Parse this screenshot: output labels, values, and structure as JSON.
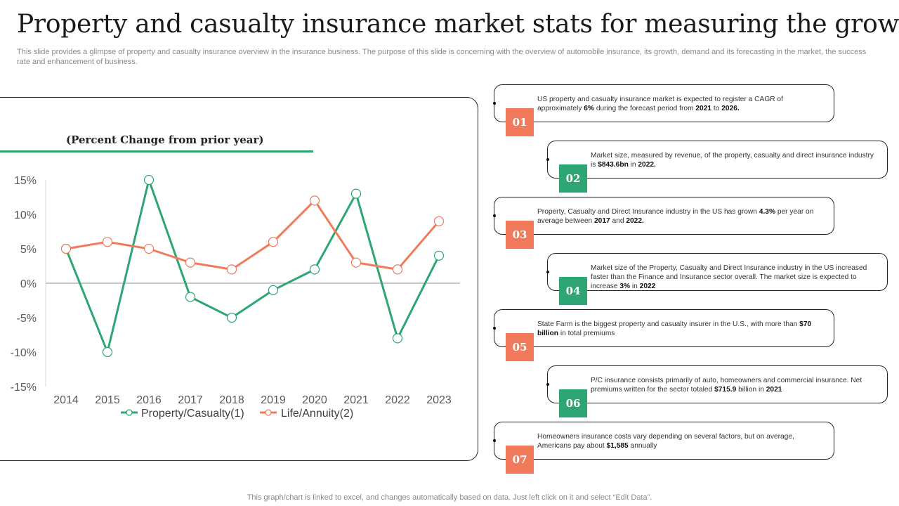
{
  "header": {
    "title": "Property and casualty insurance market stats for measuring the growth",
    "subtitle": "This slide provides a glimpse of property and casualty insurance overview in the insurance business. The purpose of this slide is concerning with the overview of automobile insurance, its growth, demand and its forecasting in the market, the success rate and enhancement of business."
  },
  "chart_data": {
    "type": "line",
    "title": "(Percent Change from prior year)",
    "categories": [
      "2014",
      "2015",
      "2016",
      "2017",
      "2018",
      "2019",
      "2020",
      "2021",
      "2022",
      "2023"
    ],
    "series": [
      {
        "name": "Property/Casualty(1)",
        "color": "#2ea673",
        "values": [
          5,
          -10,
          15,
          -2,
          -5,
          -1,
          2,
          13,
          -8,
          4
        ]
      },
      {
        "name": "Life/Annuity(2)",
        "color": "#f07a5a",
        "values": [
          5,
          6,
          5,
          3,
          2,
          6,
          12,
          3,
          2,
          9
        ]
      }
    ],
    "ylim": [
      -15,
      15
    ],
    "yticks": [
      "15%",
      "10%",
      "5%",
      "0%",
      "-5%",
      "-10%",
      "-15%"
    ],
    "ytick_values": [
      15,
      10,
      5,
      0,
      -5,
      -10,
      -15
    ],
    "xlabel": "",
    "ylabel": "",
    "legend_position": "bottom"
  },
  "stats": [
    {
      "number": "01",
      "color": "orange",
      "segments": [
        [
          "US property and casualty insurance market is expected to register a CAGR of approximately ",
          false
        ],
        [
          "6%",
          true
        ],
        [
          " during the forecast period from ",
          false
        ],
        [
          "2021",
          true
        ],
        [
          " to ",
          false
        ],
        [
          "2026.",
          true
        ]
      ]
    },
    {
      "number": "02",
      "color": "green",
      "segments": [
        [
          "Market size, measured by revenue, of the property, casualty and direct insurance industry is ",
          false
        ],
        [
          "$843.6bn",
          true
        ],
        [
          " in ",
          false
        ],
        [
          "2022.",
          true
        ]
      ]
    },
    {
      "number": "03",
      "color": "orange",
      "segments": [
        [
          "Property, Casualty and Direct Insurance industry in the US has grown ",
          false
        ],
        [
          "4.3%",
          true
        ],
        [
          " per year on average between ",
          false
        ],
        [
          "2017",
          true
        ],
        [
          " and ",
          false
        ],
        [
          "2022.",
          true
        ]
      ]
    },
    {
      "number": "04",
      "color": "green",
      "segments": [
        [
          "Market size of the Property, Casualty and Direct Insurance industry in the US increased faster than the Finance and Insurance sector overall. The market size is expected to increase ",
          false
        ],
        [
          "3%",
          true
        ],
        [
          " in ",
          false
        ],
        [
          "2022",
          true
        ]
      ]
    },
    {
      "number": "05",
      "color": "orange",
      "segments": [
        [
          "State Farm is the biggest property and casualty insurer in the U.S., with more than ",
          false
        ],
        [
          "$70 billion",
          true
        ],
        [
          " in total premiums",
          false
        ]
      ]
    },
    {
      "number": "06",
      "color": "green",
      "segments": [
        [
          "P/C insurance consists primarily of auto, homeowners and commercial insurance. Net premiums written for the sector totaled ",
          false
        ],
        [
          "$715.9",
          true
        ],
        [
          " billion in ",
          false
        ],
        [
          "2021",
          true
        ]
      ]
    },
    {
      "number": "07",
      "color": "orange",
      "segments": [
        [
          "Homeowners insurance costs vary depending on several factors, but on average, Americans pay about ",
          false
        ],
        [
          "$1,585",
          true
        ],
        [
          " annually",
          false
        ]
      ]
    }
  ],
  "footer": {
    "note": "This graph/chart is linked to excel, and changes automatically based on data. Just left click on it and select “Edit Data”."
  }
}
